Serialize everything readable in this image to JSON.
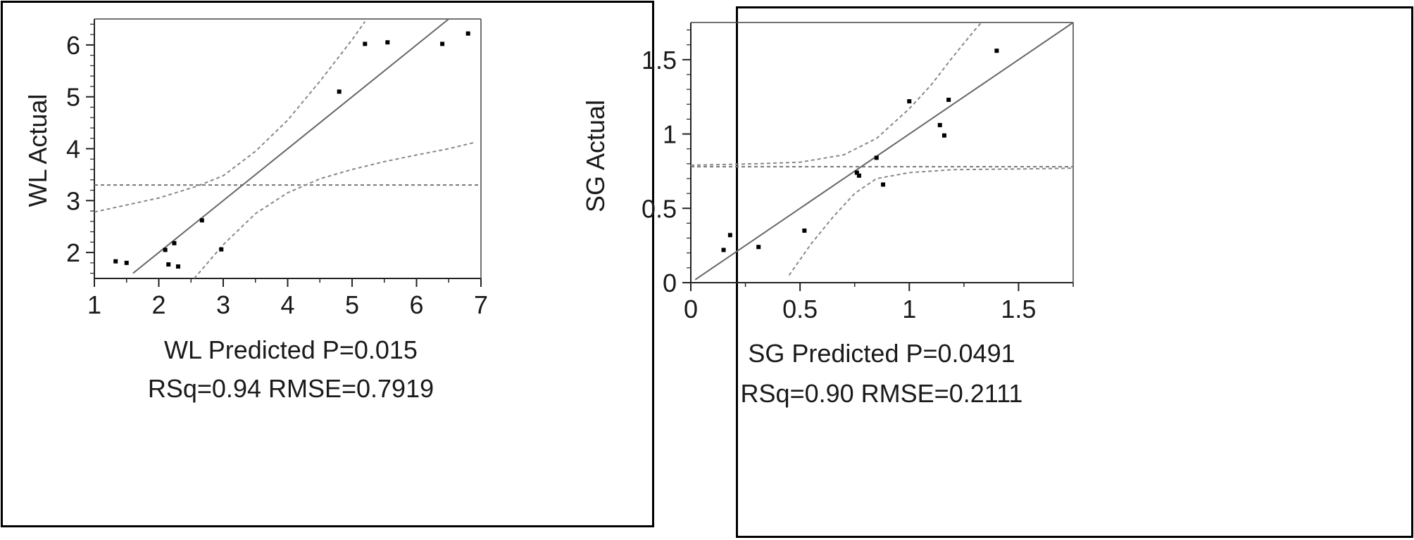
{
  "chart_data": [
    {
      "type": "scatter",
      "xlabel": "WL Predicted P=0.015",
      "stats": "RSq=0.94 RMSE=0.7919",
      "ylabel": "WL Actual",
      "xlim": [
        1,
        7
      ],
      "ylim": [
        1.5,
        6.5
      ],
      "xticks": [
        "1",
        "2",
        "3",
        "4",
        "5",
        "6",
        "7"
      ],
      "yticks": [
        "2",
        "3",
        "4",
        "5",
        "6"
      ],
      "mean_line": 3.3,
      "fit_line": [
        [
          1.6,
          1.6
        ],
        [
          6.5,
          6.5
        ]
      ],
      "confidence_upper": [
        [
          1.0,
          2.78
        ],
        [
          2.0,
          3.05
        ],
        [
          2.6,
          3.28
        ],
        [
          3.0,
          3.48
        ],
        [
          3.5,
          3.95
        ],
        [
          4.0,
          4.55
        ],
        [
          4.5,
          5.3
        ],
        [
          5.0,
          6.1
        ],
        [
          5.2,
          6.45
        ]
      ],
      "confidence_lower": [
        [
          2.55,
          1.5
        ],
        [
          3.0,
          2.15
        ],
        [
          3.5,
          2.75
        ],
        [
          4.0,
          3.15
        ],
        [
          4.5,
          3.42
        ],
        [
          5.0,
          3.6
        ],
        [
          5.5,
          3.75
        ],
        [
          6.0,
          3.88
        ],
        [
          6.5,
          4.0
        ],
        [
          6.9,
          4.12
        ]
      ],
      "points": [
        {
          "x": 1.33,
          "y": 1.83
        },
        {
          "x": 1.5,
          "y": 1.8
        },
        {
          "x": 2.1,
          "y": 2.05
        },
        {
          "x": 2.15,
          "y": 1.77
        },
        {
          "x": 2.24,
          "y": 2.18
        },
        {
          "x": 2.3,
          "y": 1.73
        },
        {
          "x": 2.67,
          "y": 2.62
        },
        {
          "x": 2.97,
          "y": 2.06
        },
        {
          "x": 4.8,
          "y": 5.1
        },
        {
          "x": 5.2,
          "y": 6.02
        },
        {
          "x": 5.55,
          "y": 6.05
        },
        {
          "x": 6.4,
          "y": 6.02
        },
        {
          "x": 6.8,
          "y": 6.22
        }
      ]
    },
    {
      "type": "scatter",
      "xlabel": "SG Predicted P=0.0491",
      "stats": "RSq=0.90 RMSE=0.2111",
      "ylabel": "SG Actual",
      "xlim": [
        0,
        1.75
      ],
      "ylim": [
        0,
        1.75
      ],
      "xticks": [
        "0",
        "0.5",
        "1",
        "1.5"
      ],
      "xtick_values": [
        0,
        0.5,
        1,
        1.5
      ],
      "yticks": [
        "0",
        "0.5",
        "1",
        "1.5"
      ],
      "ytick_values": [
        0,
        0.5,
        1,
        1.5
      ],
      "mean_line": 0.78,
      "fit_line": [
        [
          0.02,
          0.02
        ],
        [
          1.75,
          1.75
        ]
      ],
      "confidence_upper": [
        [
          0.0,
          0.79
        ],
        [
          0.3,
          0.8
        ],
        [
          0.5,
          0.81
        ],
        [
          0.7,
          0.86
        ],
        [
          0.85,
          0.97
        ],
        [
          1.0,
          1.17
        ],
        [
          1.1,
          1.33
        ],
        [
          1.2,
          1.52
        ],
        [
          1.3,
          1.7
        ],
        [
          1.33,
          1.75
        ]
      ],
      "confidence_lower": [
        [
          0.45,
          0.05
        ],
        [
          0.55,
          0.26
        ],
        [
          0.65,
          0.44
        ],
        [
          0.75,
          0.6
        ],
        [
          0.85,
          0.7
        ],
        [
          1.0,
          0.74
        ],
        [
          1.2,
          0.76
        ],
        [
          1.5,
          0.765
        ],
        [
          1.75,
          0.77
        ]
      ],
      "points": [
        {
          "x": 0.15,
          "y": 0.22
        },
        {
          "x": 0.18,
          "y": 0.32
        },
        {
          "x": 0.31,
          "y": 0.24
        },
        {
          "x": 0.52,
          "y": 0.35
        },
        {
          "x": 0.76,
          "y": 0.74
        },
        {
          "x": 0.77,
          "y": 0.72
        },
        {
          "x": 0.85,
          "y": 0.84
        },
        {
          "x": 0.88,
          "y": 0.66
        },
        {
          "x": 1.0,
          "y": 1.22
        },
        {
          "x": 1.14,
          "y": 1.06
        },
        {
          "x": 1.16,
          "y": 0.99
        },
        {
          "x": 1.18,
          "y": 1.23
        },
        {
          "x": 1.4,
          "y": 1.56
        }
      ]
    }
  ]
}
